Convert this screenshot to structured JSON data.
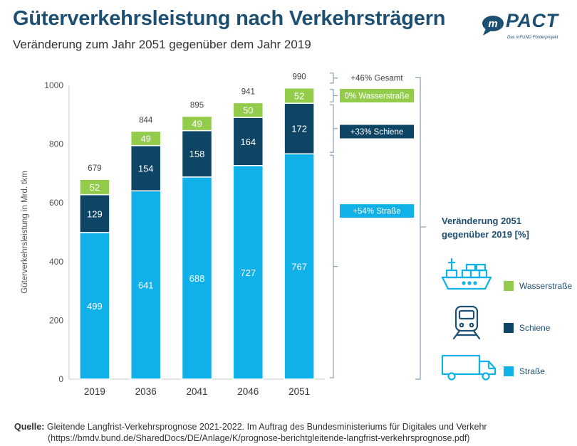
{
  "header": {
    "title": "Güterverkehrsleistung nach Verkehrsträgern",
    "subtitle": "Veränderung zum Jahr 2051 gegenüber dem Jahr 2019"
  },
  "logo": {
    "text": "PACT",
    "prefix": "m",
    "tagline": "Das mFUND Förderprojekt"
  },
  "chart_data": {
    "type": "bar",
    "stacked": true,
    "categories": [
      "2019",
      "2036",
      "2041",
      "2046",
      "2051"
    ],
    "series": [
      {
        "name": "Straße",
        "color": "#10b0e8",
        "values": [
          499,
          641,
          688,
          727,
          767
        ]
      },
      {
        "name": "Schiene",
        "color": "#0e4565",
        "values": [
          129,
          154,
          158,
          164,
          172
        ]
      },
      {
        "name": "Wasserstraße",
        "color": "#92cc4a",
        "values": [
          52,
          49,
          49,
          50,
          52
        ]
      }
    ],
    "totals": [
      "679",
      "844",
      "895",
      "941",
      "990"
    ],
    "ylabel": "Güterverkehrsleistung in Mrd. tkm",
    "ylim": [
      0,
      1000
    ],
    "yticks": [
      "0",
      "200",
      "400",
      "600",
      "800",
      "1000"
    ],
    "grid": false,
    "annotations": [
      {
        "text": "+46% Gesamt",
        "style": "plain"
      },
      {
        "text": "0% Wasserstraße",
        "style": "green"
      },
      {
        "text": "+33% Schiene",
        "style": "dark"
      },
      {
        "text": "+54% Straße",
        "style": "blue"
      }
    ]
  },
  "legend": {
    "title_line1": "Veränderung 2051",
    "title_line2": "gegenüber 2019 [%]",
    "items": [
      {
        "label": "Wasserstraße",
        "color": "#92cc4a",
        "icon": "ship-icon"
      },
      {
        "label": "Schiene",
        "color": "#0e4565",
        "icon": "train-icon"
      },
      {
        "label": "Straße",
        "color": "#10b0e8",
        "icon": "truck-icon"
      }
    ]
  },
  "source": {
    "label": "Quelle:",
    "text": "Gleitende Langfrist-Verkehrsprognose 2021-2022. Im Auftrag des Bundesministeriums für Digitales und Verkehr",
    "url": "(https://bmdv.bund.de/SharedDocs/DE/Anlage/K/prognose-berichtgleitende-langfrist-verkehrsprognose.pdf)"
  }
}
